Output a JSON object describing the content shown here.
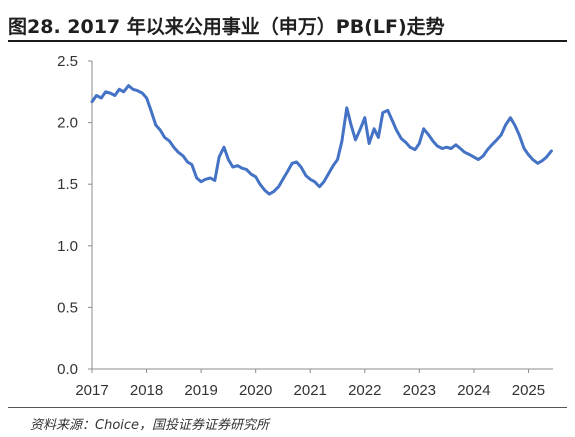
{
  "title": "图28. 2017 年以来公用事业（申万）PB(LF)走势",
  "source": "资料来源：Choice，国投证券证券研究所",
  "chart_data": {
    "type": "line",
    "title": "图28. 2017 年以来公用事业（申万）PB(LF)走势",
    "xlabel": "",
    "ylabel": "",
    "ylim": [
      0.0,
      2.5
    ],
    "yticks": [
      "0.0",
      "0.5",
      "1.0",
      "1.5",
      "2.0",
      "2.5"
    ],
    "xlim": [
      2017.0,
      2025.45
    ],
    "xticks": [
      "2017",
      "2018",
      "2019",
      "2020",
      "2021",
      "2022",
      "2023",
      "2024",
      "2025"
    ],
    "grid": false,
    "legend": "none",
    "color": "#4472C4",
    "series": [
      {
        "x": [
          2017.0,
          2017.08,
          2017.17,
          2017.25,
          2017.33,
          2017.42,
          2017.5,
          2017.58,
          2017.67,
          2017.75,
          2017.83,
          2017.92,
          2018.0,
          2018.08,
          2018.17,
          2018.25,
          2018.33,
          2018.42,
          2018.5,
          2018.58,
          2018.67,
          2018.75,
          2018.83,
          2018.92,
          2019.0,
          2019.08,
          2019.17,
          2019.25,
          2019.33,
          2019.42,
          2019.5,
          2019.58,
          2019.67,
          2019.75,
          2019.83,
          2019.92,
          2020.0,
          2020.08,
          2020.17,
          2020.25,
          2020.33,
          2020.42,
          2020.5,
          2020.58,
          2020.67,
          2020.75,
          2020.83,
          2020.92,
          2021.0,
          2021.08,
          2021.17,
          2021.25,
          2021.33,
          2021.42,
          2021.5,
          2021.58,
          2021.67,
          2021.75,
          2021.83,
          2021.92,
          2022.0,
          2022.08,
          2022.17,
          2022.25,
          2022.33,
          2022.42,
          2022.5,
          2022.58,
          2022.67,
          2022.75,
          2022.83,
          2022.92,
          2023.0,
          2023.08,
          2023.17,
          2023.25,
          2023.33,
          2023.42,
          2023.5,
          2023.58,
          2023.67,
          2023.75,
          2023.83,
          2023.92,
          2024.0,
          2024.08,
          2024.17,
          2024.25,
          2024.33,
          2024.42,
          2024.5,
          2024.58,
          2024.67,
          2024.75,
          2024.83,
          2024.92,
          2025.0,
          2025.08,
          2025.17,
          2025.25,
          2025.33,
          2025.42
        ],
        "values": [
          2.17,
          2.22,
          2.2,
          2.25,
          2.24,
          2.22,
          2.27,
          2.25,
          2.3,
          2.27,
          2.26,
          2.24,
          2.2,
          2.1,
          1.98,
          1.94,
          1.88,
          1.85,
          1.8,
          1.76,
          1.73,
          1.68,
          1.66,
          1.55,
          1.52,
          1.54,
          1.55,
          1.53,
          1.72,
          1.8,
          1.7,
          1.64,
          1.65,
          1.63,
          1.62,
          1.58,
          1.56,
          1.5,
          1.45,
          1.42,
          1.44,
          1.48,
          1.54,
          1.6,
          1.67,
          1.68,
          1.64,
          1.57,
          1.54,
          1.52,
          1.48,
          1.52,
          1.58,
          1.65,
          1.7,
          1.85,
          2.12,
          1.98,
          1.86,
          1.95,
          2.04,
          1.83,
          1.95,
          1.88,
          2.08,
          2.1,
          2.02,
          1.94,
          1.87,
          1.84,
          1.8,
          1.78,
          1.83,
          1.95,
          1.9,
          1.85,
          1.81,
          1.79,
          1.8,
          1.79,
          1.82,
          1.79,
          1.76,
          1.74,
          1.72,
          1.7,
          1.73,
          1.78,
          1.82,
          1.86,
          1.9,
          1.98,
          2.04,
          1.98,
          1.9,
          1.79,
          1.74,
          1.7,
          1.67,
          1.69,
          1.72,
          1.77
        ]
      }
    ]
  }
}
